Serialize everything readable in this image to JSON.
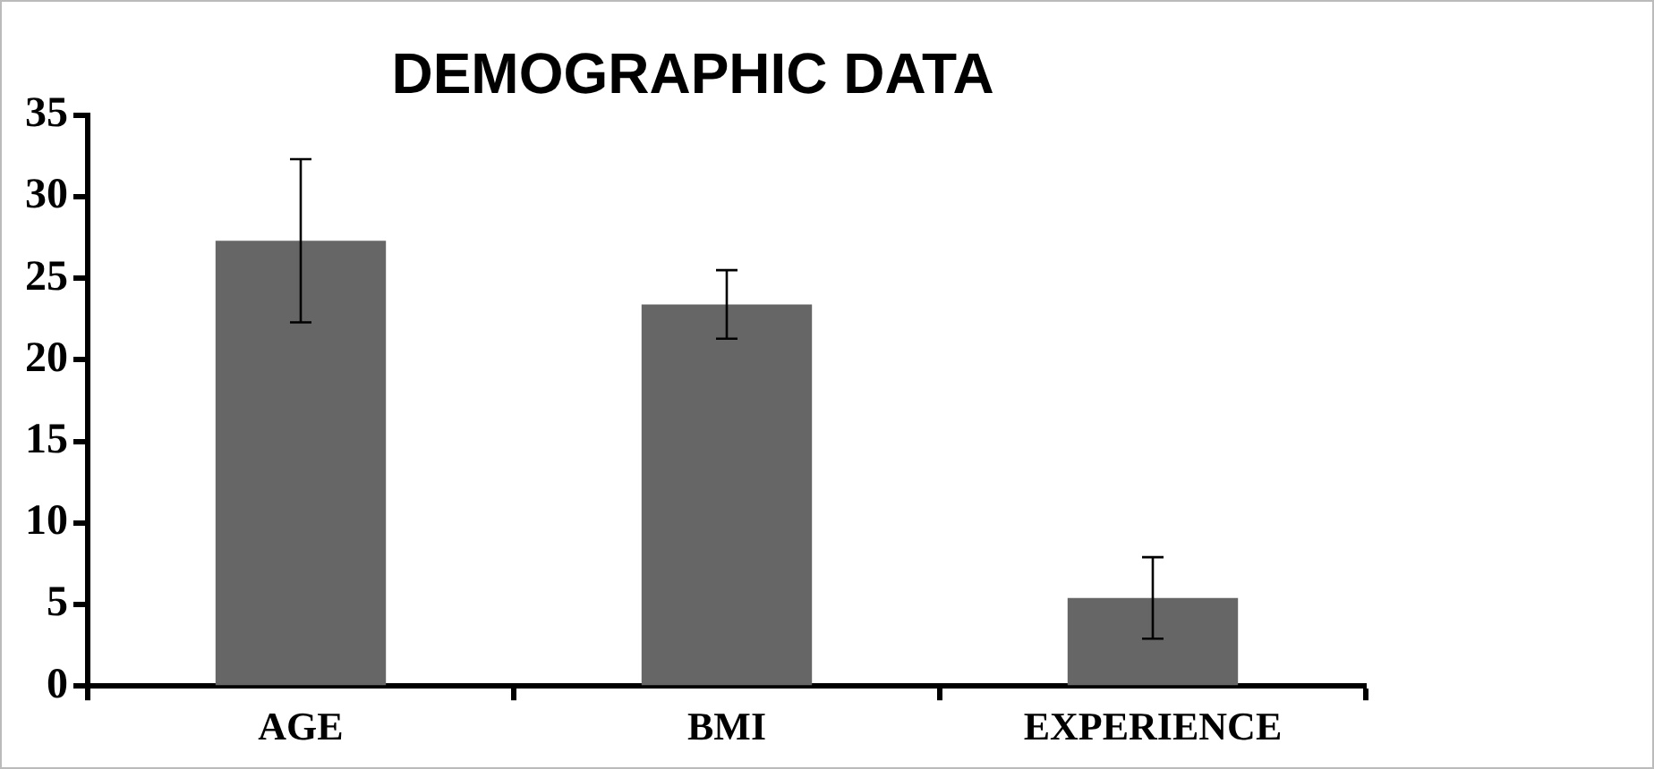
{
  "chart_data": {
    "type": "bar",
    "title": "DEMOGRAPHIC DATA",
    "categories": [
      "AGE",
      "BMI",
      "EXPERIENCE"
    ],
    "values": [
      27.3,
      23.4,
      5.4
    ],
    "color": "#666666",
    "errors": [
      5.0,
      2.1,
      2.5
    ],
    "ylim": [
      0,
      35
    ],
    "yticks": [
      0,
      5,
      10,
      15,
      20,
      25,
      30,
      35
    ],
    "grid": false,
    "legend": false
  }
}
